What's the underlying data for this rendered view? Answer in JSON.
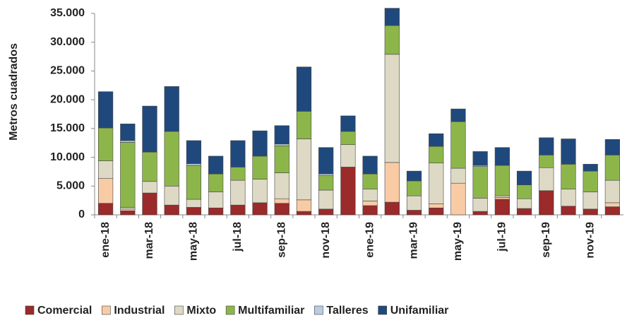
{
  "chart_data": {
    "type": "stacked_bar",
    "y_label": "Metros cuadrados",
    "categories": [
      "ene-18",
      null,
      "mar-18",
      null,
      "may-18",
      null,
      "jul-18",
      null,
      "sep-18",
      null,
      "nov-18",
      null,
      "ene-19",
      null,
      "mar-19",
      null,
      "may-19",
      null,
      "jul-19",
      null,
      "sep-19",
      null,
      "nov-19",
      null
    ],
    "series": [
      {
        "name": "Comercial",
        "color": "#9b2a2a",
        "values": [
          2000,
          700,
          3800,
          1700,
          1300,
          1200,
          1700,
          2100,
          2000,
          600,
          1000,
          8300,
          1600,
          2200,
          800,
          1200,
          0,
          600,
          2700,
          1100,
          4200,
          1500,
          1000,
          1400
        ]
      },
      {
        "name": "Industrial",
        "color": "#f9cba5",
        "values": [
          4300,
          300,
          0,
          0,
          0,
          0,
          0,
          0,
          800,
          2000,
          0,
          0,
          800,
          6900,
          0,
          700,
          5500,
          0,
          300,
          0,
          0,
          0,
          0,
          700
        ]
      },
      {
        "name": "Mixto",
        "color": "#ddd9c4",
        "values": [
          3100,
          300,
          2000,
          3300,
          1400,
          2800,
          4300,
          4100,
          4500,
          10600,
          3300,
          3900,
          2100,
          18800,
          2500,
          7100,
          2600,
          2300,
          300,
          1700,
          4000,
          3000,
          3000,
          3900
        ]
      },
      {
        "name": "Multifamiliar",
        "color": "#8db64a",
        "values": [
          5700,
          11300,
          5100,
          9500,
          5900,
          3100,
          2300,
          4000,
          4700,
          4800,
          2500,
          2300,
          2600,
          5000,
          2600,
          2900,
          8100,
          5500,
          5300,
          2400,
          2200,
          4300,
          3600,
          4400
        ]
      },
      {
        "name": "Talleres",
        "color": "#b8cce4",
        "values": [
          0,
          300,
          0,
          0,
          300,
          0,
          0,
          0,
          300,
          0,
          300,
          0,
          0,
          0,
          0,
          0,
          0,
          200,
          0,
          0,
          0,
          0,
          0,
          0
        ]
      },
      {
        "name": "Unifamiliar",
        "color": "#1f497d",
        "values": [
          6300,
          2900,
          8000,
          7800,
          4000,
          3100,
          4600,
          4400,
          3200,
          7700,
          4600,
          2700,
          3100,
          3000,
          1700,
          2200,
          2200,
          2400,
          3100,
          2400,
          3000,
          4400,
          1200,
          2700
        ]
      }
    ],
    "ylim": [
      0,
      35000
    ],
    "yticks": [
      0,
      {
        "value": 5000,
        "label": "5.000"
      },
      {
        "value": 10000,
        "label": "10.000"
      },
      {
        "value": 15000,
        "label": "15.000"
      },
      {
        "value": 20000,
        "label": "20.000"
      },
      {
        "value": 25000,
        "label": "25.000"
      },
      {
        "value": 30000,
        "label": "30.000"
      },
      {
        "value": 35000,
        "label": "35.000"
      }
    ],
    "grid": false
  }
}
